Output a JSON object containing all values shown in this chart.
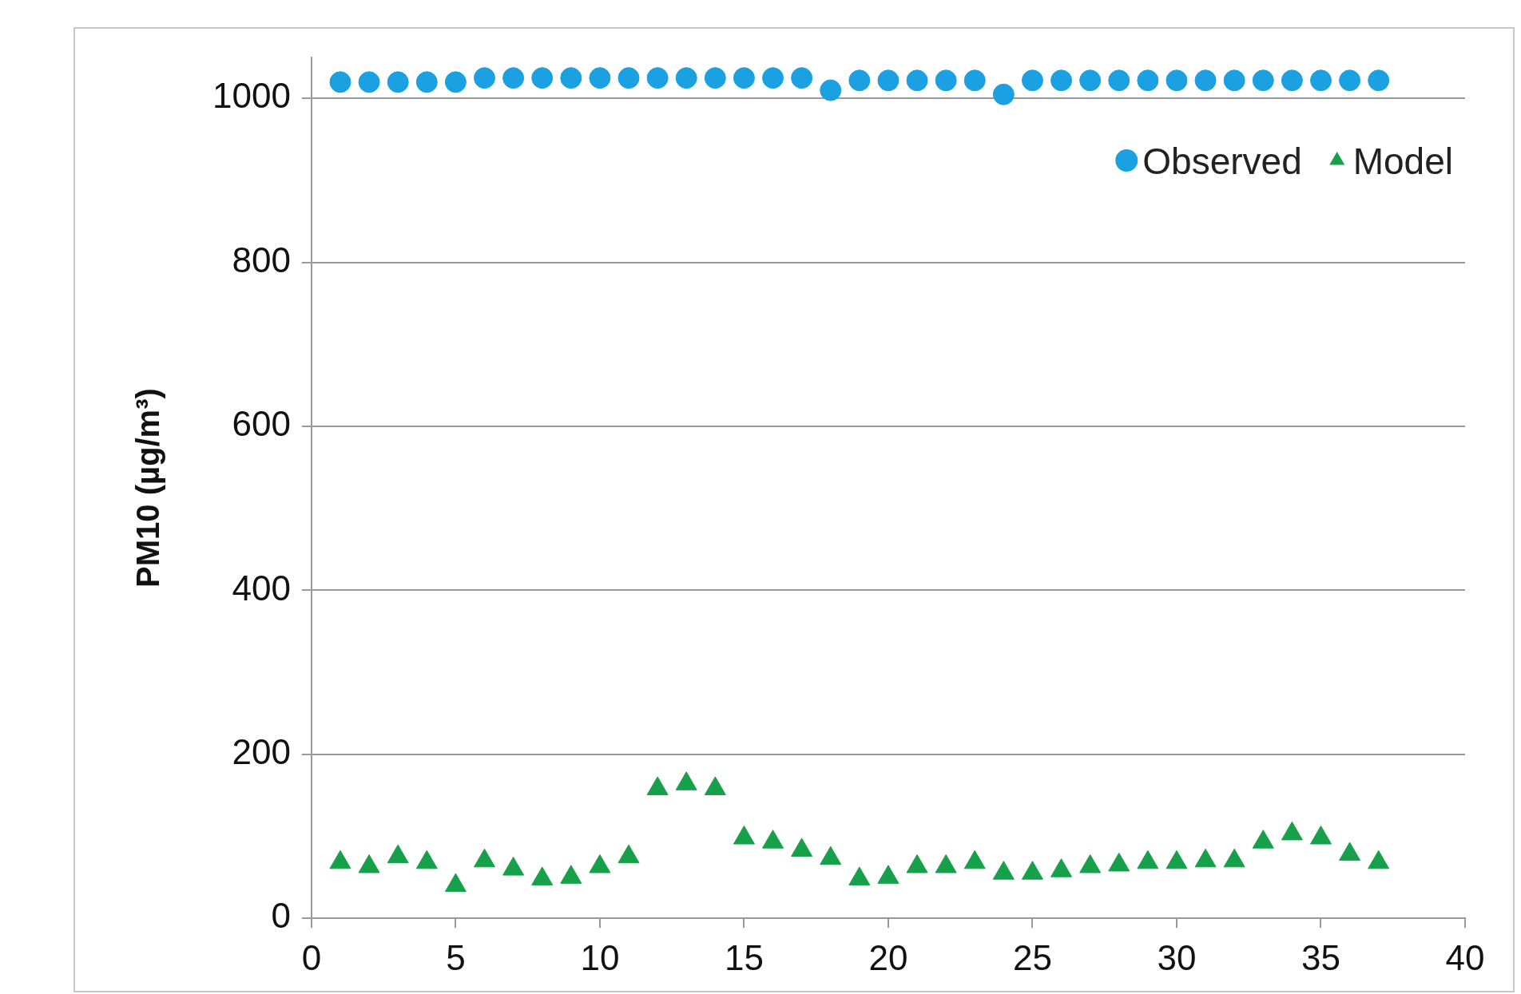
{
  "chart_data": {
    "type": "scatter",
    "ylabel": "PM10 (µg/m³)",
    "x": [
      1,
      2,
      3,
      4,
      5,
      6,
      7,
      8,
      9,
      10,
      11,
      12,
      13,
      14,
      15,
      16,
      17,
      18,
      19,
      20,
      21,
      22,
      23,
      24,
      25,
      26,
      27,
      28,
      29,
      30,
      31,
      32,
      33,
      34,
      35,
      36,
      37
    ],
    "series": [
      {
        "name": "Observed",
        "color": "#1ba1e2",
        "marker": "circle",
        "values": [
          1020,
          1020,
          1020,
          1020,
          1020,
          1025,
          1025,
          1025,
          1025,
          1025,
          1025,
          1025,
          1025,
          1025,
          1025,
          1025,
          1025,
          1010,
          1022,
          1022,
          1022,
          1022,
          1022,
          1005,
          1022,
          1022,
          1022,
          1022,
          1022,
          1022,
          1022,
          1022,
          1022,
          1022,
          1022,
          1022,
          1022
        ]
      },
      {
        "name": "Model",
        "color": "#17a04a",
        "marker": "triangle",
        "values": [
          68,
          63,
          75,
          68,
          40,
          70,
          60,
          48,
          50,
          63,
          75,
          158,
          164,
          158,
          98,
          93,
          83,
          73,
          48,
          50,
          63,
          63,
          68,
          55,
          55,
          58,
          63,
          65,
          68,
          68,
          70,
          70,
          93,
          103,
          98,
          78,
          68
        ]
      }
    ],
    "xlim": [
      0,
      40
    ],
    "xticks": [
      0,
      5,
      10,
      15,
      20,
      25,
      30,
      35,
      40
    ],
    "ylim": [
      0,
      1050
    ],
    "yticks": [
      0,
      200,
      400,
      600,
      800,
      1000
    ],
    "grid": "y",
    "legend": "top right"
  }
}
